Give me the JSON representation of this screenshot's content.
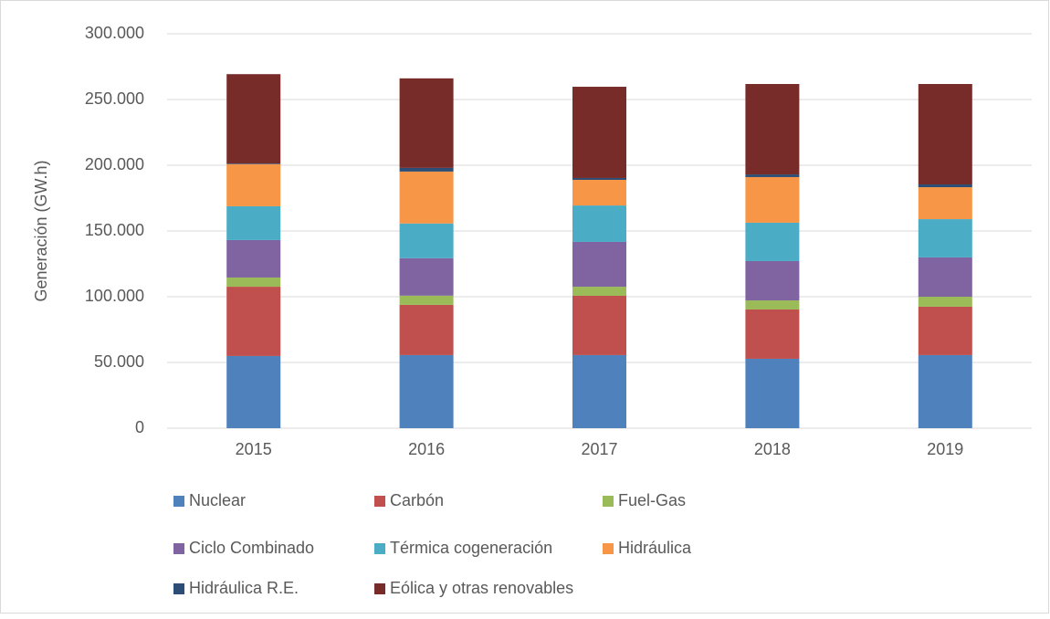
{
  "chart_data": {
    "type": "stacked_bar",
    "y_label": "Generación (GW.h)",
    "categories": [
      "2015",
      "2016",
      "2017",
      "2018",
      "2019"
    ],
    "series": [
      {
        "name": "Nuclear",
        "color": "#4f81bd",
        "values": [
          54900,
          55600,
          55600,
          52800,
          55600
        ]
      },
      {
        "name": "Carbón",
        "color": "#c0504d",
        "values": [
          52700,
          38200,
          45100,
          37500,
          36800
        ]
      },
      {
        "name": "Fuel-Gas",
        "color": "#9bbb59",
        "values": [
          7000,
          7000,
          6900,
          6900,
          7600
        ]
      },
      {
        "name": "Ciclo Combinado",
        "color": "#8064a2",
        "values": [
          28500,
          28500,
          34100,
          29900,
          29900
        ]
      },
      {
        "name": "Térmica cogeneración",
        "color": "#4bacc6",
        "values": [
          25700,
          26400,
          27700,
          29200,
          29100
        ]
      },
      {
        "name": "Hidráulica",
        "color": "#f79646",
        "values": [
          32000,
          39500,
          19500,
          34700,
          24300
        ]
      },
      {
        "name": "Hidráulica R.E.",
        "color": "#2c4d75",
        "values": [
          500,
          2800,
          1400,
          2000,
          2100
        ]
      },
      {
        "name": "Eólica y otras renovables",
        "color": "#772c2a",
        "values": [
          68000,
          68100,
          69400,
          68800,
          76400
        ]
      }
    ],
    "ylim": [
      0,
      300000
    ],
    "yticks": [
      0,
      {
        "value": 50000,
        "label": "50.000"
      },
      {
        "value": 100000,
        "label": "100.000"
      },
      {
        "value": 150000,
        "label": "150.000"
      },
      {
        "value": 200000,
        "label": "200.000"
      },
      {
        "value": 250000,
        "label": "250.000"
      },
      {
        "value": 300000,
        "label": "300.000"
      }
    ],
    "grid": true,
    "legend": "bottom"
  }
}
